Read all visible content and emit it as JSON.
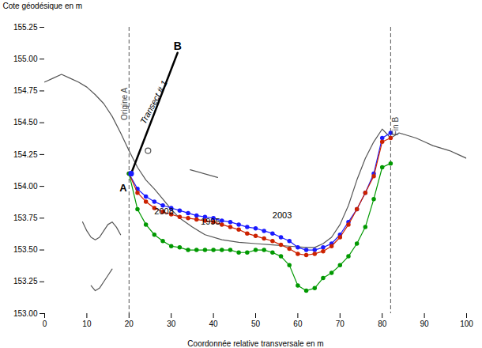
{
  "chart_data": {
    "type": "line",
    "xlabel": "Coordonnée relative transversale en m",
    "ylabel": "Cote géodésique en m",
    "xlim": [
      0,
      100
    ],
    "ylim": [
      153.0,
      155.25
    ],
    "xticks": [
      0,
      10,
      20,
      30,
      40,
      50,
      60,
      70,
      80,
      90,
      100
    ],
    "yticks": [
      {
        "value": 153.0,
        "label": "153.00"
      },
      153.25,
      {
        "value": 153.5,
        "label": "153.50"
      },
      153.75,
      {
        "value": 154.0,
        "label": "154.00"
      },
      154.25,
      {
        "value": 154.5,
        "label": "154.50"
      },
      154.75,
      {
        "value": 155.0,
        "label": "155.00"
      },
      155.25
    ],
    "series": [
      {
        "color": "#555555",
        "x": [
          0,
          2,
          4,
          6,
          8,
          10,
          12,
          14,
          16,
          18,
          20,
          22,
          24,
          26,
          28,
          30,
          32,
          35,
          38,
          42,
          46,
          50,
          54,
          58,
          62,
          64,
          66,
          68,
          70,
          72,
          74,
          76,
          78,
          80,
          82,
          84,
          86,
          88,
          90,
          92,
          94,
          96,
          98,
          100
        ],
        "values": [
          154.82,
          154.85,
          154.88,
          154.85,
          154.82,
          154.78,
          154.72,
          154.65,
          154.55,
          154.42,
          154.28,
          154.15,
          154.05,
          153.98,
          153.9,
          153.82,
          153.75,
          153.68,
          153.62,
          153.58,
          153.56,
          153.55,
          153.54,
          153.53,
          153.52,
          153.52,
          153.55,
          153.6,
          153.7,
          153.85,
          154.05,
          154.22,
          154.35,
          154.45,
          154.38,
          154.42,
          154.4,
          154.38,
          154.35,
          154.32,
          154.3,
          154.28,
          154.25,
          154.22
        ]
      },
      {
        "color": "#555555",
        "x": [
          9,
          10,
          11,
          12,
          13,
          14,
          15,
          16,
          17,
          18
        ],
        "values": [
          153.72,
          153.65,
          153.6,
          153.58,
          153.6,
          153.65,
          153.7,
          153.72,
          153.68,
          153.62
        ]
      },
      {
        "color": "#555555",
        "x": [
          11,
          12,
          13,
          14,
          15,
          16
        ],
        "values": [
          153.22,
          153.18,
          153.2,
          153.25,
          153.3,
          153.35
        ]
      },
      {
        "color": "#1a1aff",
        "marker": "circle",
        "x": [
          20,
          22,
          24,
          26,
          28,
          30,
          32,
          34,
          36,
          38,
          40,
          42,
          44,
          46,
          48,
          50,
          52,
          54,
          56,
          58,
          60,
          62,
          64,
          66,
          68,
          70,
          72,
          74,
          76,
          78,
          80,
          82
        ],
        "values": [
          154.1,
          153.98,
          153.92,
          153.88,
          153.85,
          153.83,
          153.81,
          153.79,
          153.77,
          153.76,
          153.75,
          153.73,
          153.72,
          153.7,
          153.68,
          153.67,
          153.65,
          153.63,
          153.6,
          153.57,
          153.52,
          153.5,
          153.5,
          153.52,
          153.55,
          153.62,
          153.72,
          153.82,
          153.95,
          154.1,
          154.38,
          154.42
        ]
      },
      {
        "color": "#cc2200",
        "marker": "circle",
        "x": [
          20,
          22,
          24,
          26,
          28,
          30,
          32,
          34,
          36,
          38,
          40,
          42,
          44,
          46,
          48,
          50,
          52,
          54,
          56,
          58,
          60,
          62,
          64,
          66,
          68,
          70,
          72,
          74,
          76,
          78,
          80,
          82
        ],
        "values": [
          154.1,
          153.95,
          153.88,
          153.83,
          153.8,
          153.78,
          153.76,
          153.75,
          153.74,
          153.73,
          153.72,
          153.7,
          153.68,
          153.66,
          153.63,
          153.61,
          153.59,
          153.57,
          153.54,
          153.51,
          153.47,
          153.46,
          153.47,
          153.49,
          153.53,
          153.6,
          153.7,
          153.82,
          153.95,
          154.08,
          154.35,
          154.38
        ]
      },
      {
        "color": "#009900",
        "marker": "circle",
        "x": [
          20,
          22,
          24,
          26,
          28,
          30,
          32,
          34,
          36,
          38,
          40,
          42,
          44,
          46,
          48,
          50,
          52,
          54,
          56,
          58,
          60,
          62,
          64,
          66,
          68,
          70,
          72,
          74,
          76,
          78,
          80,
          82
        ],
        "values": [
          154.1,
          153.82,
          153.7,
          153.62,
          153.57,
          153.53,
          153.52,
          153.5,
          153.5,
          153.5,
          153.5,
          153.5,
          153.5,
          153.48,
          153.48,
          153.5,
          153.5,
          153.48,
          153.45,
          153.38,
          153.22,
          153.18,
          153.2,
          153.28,
          153.32,
          153.38,
          153.45,
          153.55,
          153.68,
          153.9,
          154.15,
          154.18
        ]
      }
    ],
    "vlines": [
      {
        "x": 20,
        "color": "#555555",
        "line_style": "dashed"
      },
      {
        "x": 82,
        "color": "#555555",
        "line_style": "dashed"
      }
    ],
    "segments": [
      {
        "x": [
          20.5,
          31.5
        ],
        "y": [
          154.1,
          155.05
        ],
        "color": "black"
      },
      {
        "x": [
          34.5,
          41.0
        ],
        "y": [
          154.13,
          154.07
        ],
        "color": "#555555"
      }
    ],
    "points": [
      {
        "x": 24.5,
        "y": 154.28,
        "color": "#555555",
        "fill": "white"
      },
      {
        "x": 20.5,
        "y": 154.1,
        "color": "#1a1aff",
        "fill": "#1a1aff"
      }
    ],
    "annotations": [
      {
        "text": "A",
        "x": 19.5,
        "y": 154.02
      },
      {
        "text": "B",
        "x": 31.5,
        "y": 155.07
      },
      {
        "text": "Transect # 1",
        "x": 26.5,
        "y": 154.65
      },
      {
        "text": "Origine A",
        "x": 19.5,
        "y": 154.52,
        "color": "#444444"
      },
      {
        "text": "Fin B",
        "x": 82.5,
        "y": 154.4,
        "color": "#444444"
      },
      {
        "text": "2008",
        "x": 26,
        "y": 153.78,
        "color": "black"
      },
      {
        "text": "1995",
        "x": 37,
        "y": 153.7,
        "color": "black"
      },
      {
        "text": "2003",
        "x": 54,
        "y": 153.75,
        "color": "black"
      }
    ]
  }
}
